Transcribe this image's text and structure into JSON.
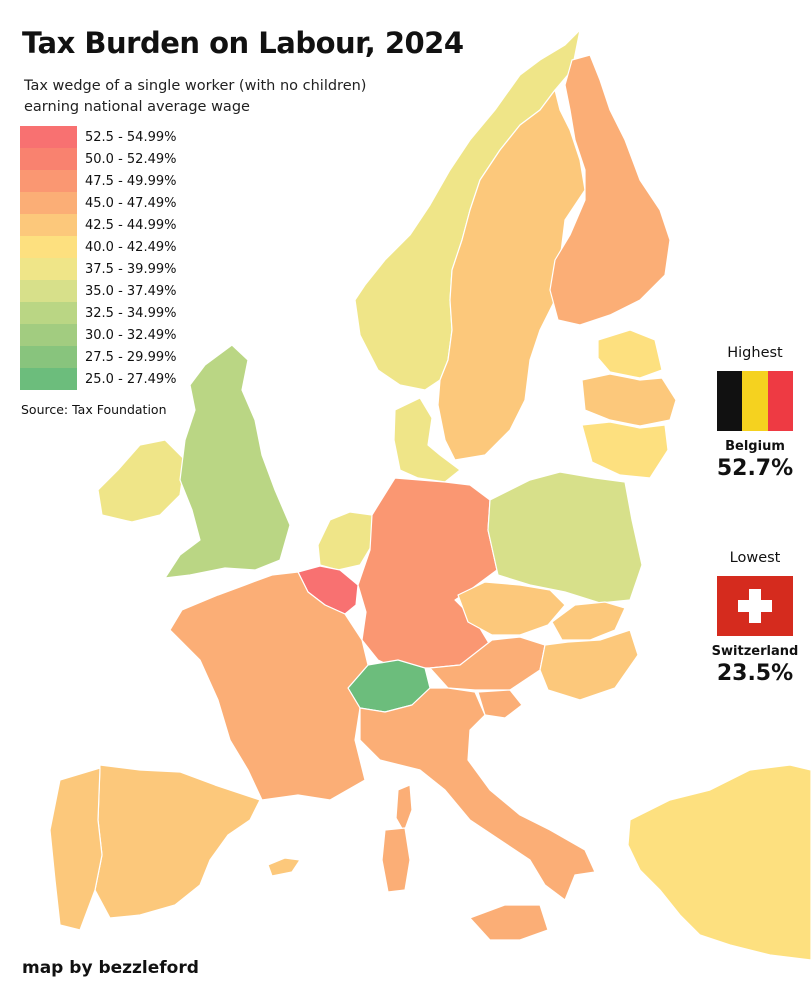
{
  "title": "Tax Burden on Labour, 2024",
  "subtitle": "Tax wedge of a single worker (with no children) earning national average wage",
  "legend": [
    {
      "label": "52.5 - 54.99%",
      "color": "#f87171"
    },
    {
      "label": "50.0 - 52.49%",
      "color": "#f9826f"
    },
    {
      "label": "47.5 - 49.99%",
      "color": "#fa9772"
    },
    {
      "label": "45.0 - 47.49%",
      "color": "#fbae76"
    },
    {
      "label": "42.5 - 44.99%",
      "color": "#fcc87b"
    },
    {
      "label": "40.0 - 42.49%",
      "color": "#fde07f"
    },
    {
      "label": "37.5 - 39.99%",
      "color": "#efe588"
    },
    {
      "label": "35.0 - 37.49%",
      "color": "#d7e08a"
    },
    {
      "label": "32.5 - 34.99%",
      "color": "#bad684"
    },
    {
      "label": "30.0 - 32.49%",
      "color": "#a2cc80"
    },
    {
      "label": "27.5 - 29.99%",
      "color": "#88c47d"
    },
    {
      "label": "25.0 - 27.49%",
      "color": "#6cbd7c"
    }
  ],
  "source": "Source: Tax Foundation",
  "credit": "map by bezzleford",
  "highest": {
    "heading": "Highest",
    "country": "Belgium",
    "value": "52.7%"
  },
  "lowest": {
    "heading": "Lowest",
    "country": "Switzerland",
    "value": "23.5%"
  },
  "colors": {
    "sea": "#ffffff",
    "border": "#ffffff",
    "belgium_flag": [
      "#111111",
      "#f5d21f",
      "#ee3a43"
    ],
    "swiss_flag": "#d52b1e"
  }
}
